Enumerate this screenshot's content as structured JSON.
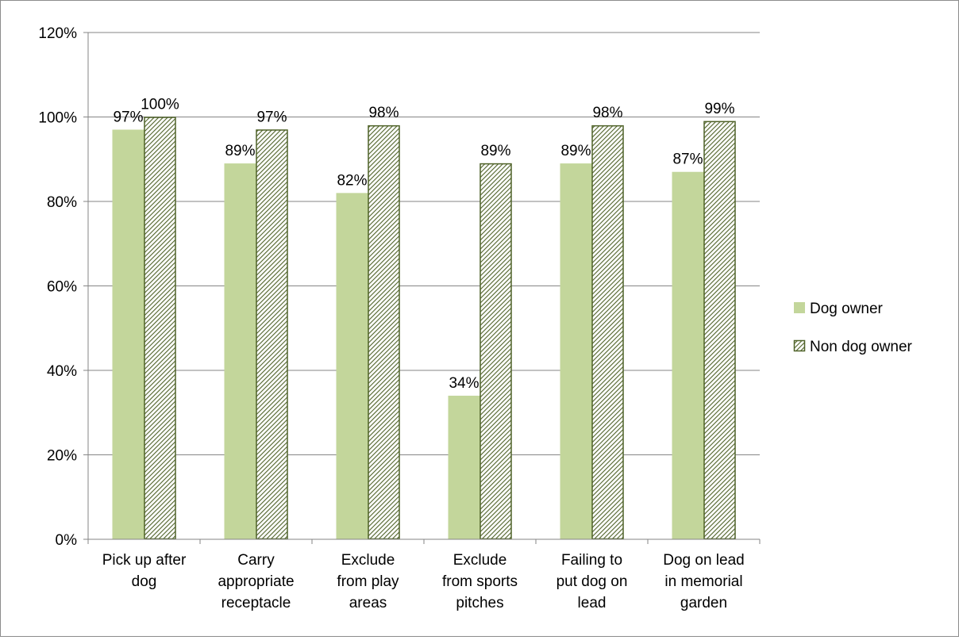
{
  "chart_data": {
    "type": "bar",
    "categories": [
      [
        "Pick up after",
        "dog"
      ],
      [
        "Carry",
        "appropriate",
        "receptacle"
      ],
      [
        "Exclude",
        "from play",
        "areas"
      ],
      [
        "Exclude",
        "from sports",
        "pitches"
      ],
      [
        "Failing to",
        "put dog on",
        "lead"
      ],
      [
        "Dog on lead",
        "in memorial",
        "garden"
      ]
    ],
    "series": [
      {
        "name": "Dog owner",
        "values": [
          97,
          89,
          82,
          34,
          89,
          87
        ],
        "labels": [
          "97%",
          "89%",
          "82%",
          "34%",
          "89%",
          "87%"
        ],
        "color": "#c3d69b",
        "pattern": "solid"
      },
      {
        "name": "Non dog owner",
        "values": [
          100,
          97,
          98,
          89,
          98,
          99
        ],
        "labels": [
          "100%",
          "97%",
          "98%",
          "89%",
          "98%",
          "99%"
        ],
        "color": "#4f6228",
        "pattern": "diagonal-hatch"
      }
    ],
    "ylim": [
      0,
      120
    ],
    "yticks": [
      0,
      20,
      40,
      60,
      80,
      100,
      120
    ],
    "ytick_labels": [
      "0%",
      "20%",
      "40%",
      "60%",
      "80%",
      "100%",
      "120%"
    ],
    "grid": true,
    "legend": "right",
    "title": "",
    "xlabel": "",
    "ylabel": ""
  }
}
